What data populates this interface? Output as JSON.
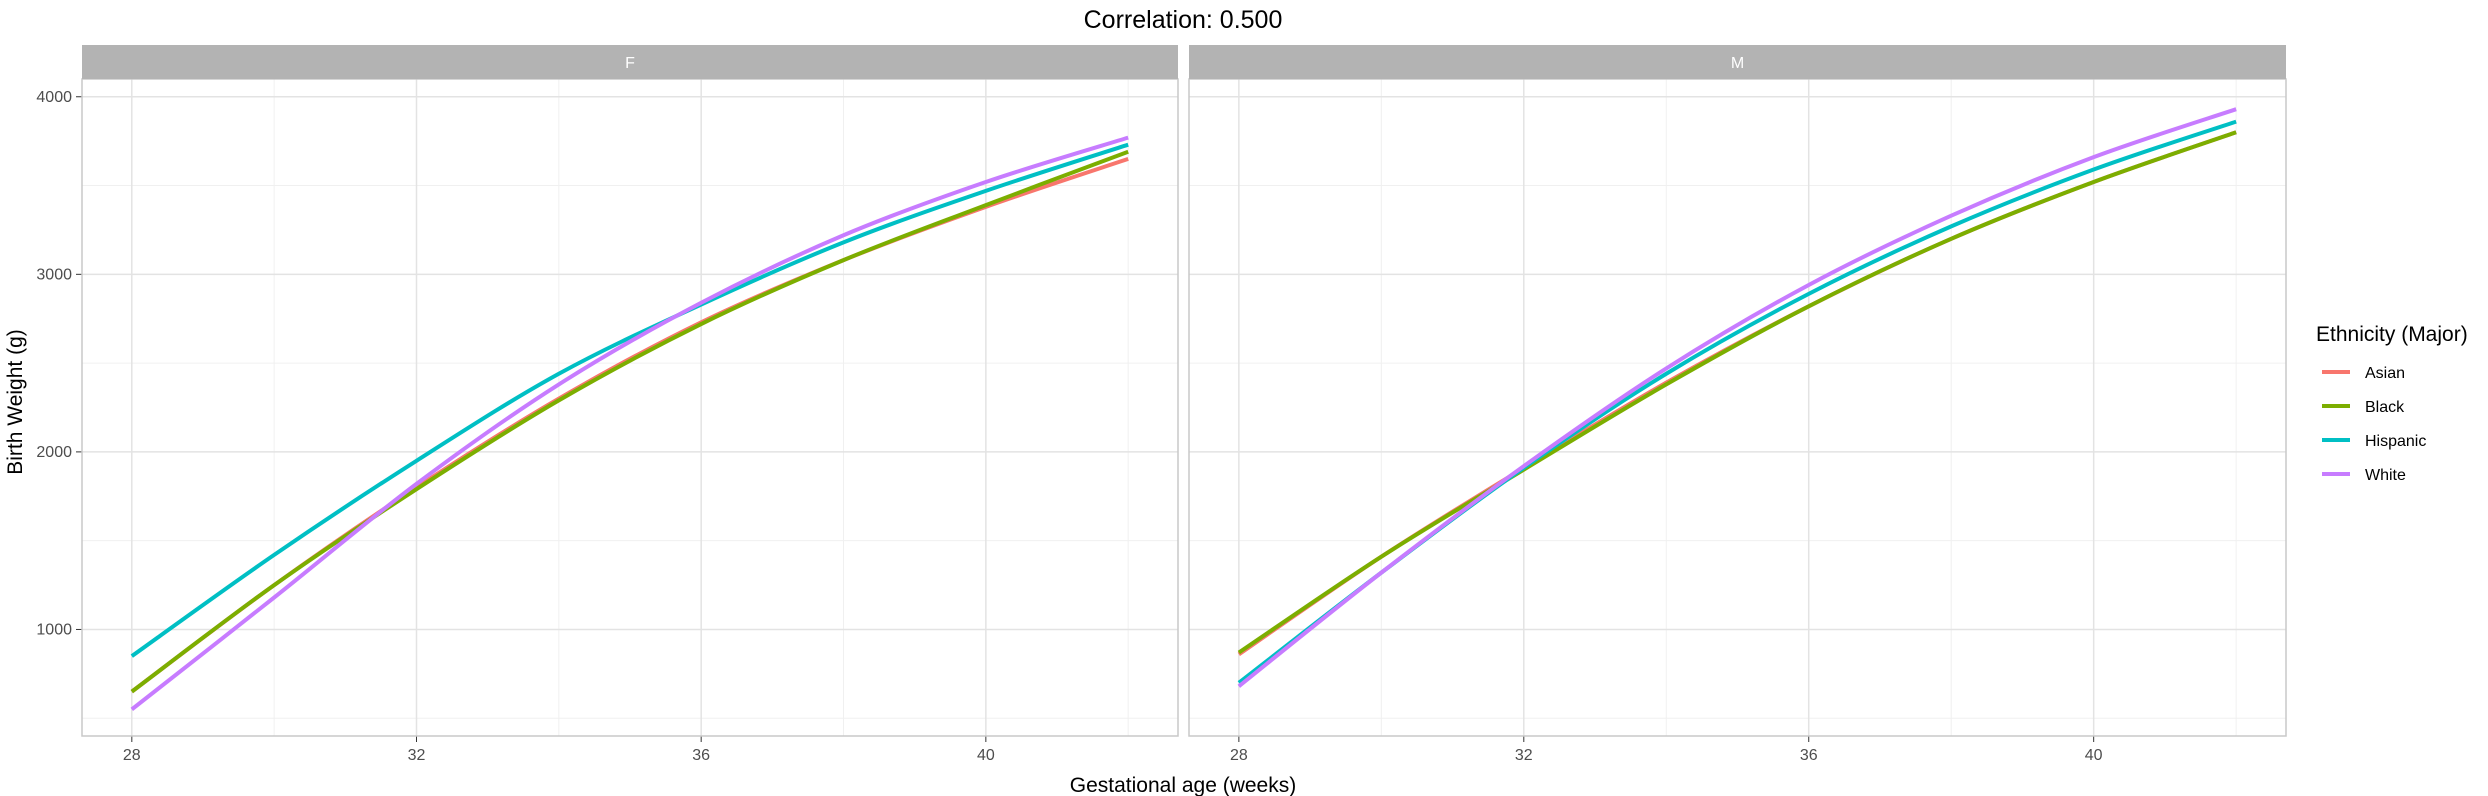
{
  "chart_data": {
    "type": "line",
    "title": "Correlation: 0.500",
    "xlabel": "Gestational age (weeks)",
    "ylabel": "Birth Weight (g)",
    "xlim": [
      27.3,
      42.7
    ],
    "ylim": [
      400,
      4100
    ],
    "x_ticks": [
      28,
      32,
      36,
      40
    ],
    "y_ticks": [
      1000,
      2000,
      3000,
      4000
    ],
    "grid": true,
    "legend_title": "Ethnicity (Major)",
    "legend_position": "right",
    "colors": {
      "Asian": "#F8766D",
      "Black": "#7CAE00",
      "Hispanic": "#00BFC4",
      "White": "#C77CFF"
    },
    "panels": [
      {
        "label": "F",
        "x": [
          28,
          30,
          32,
          34,
          36,
          38,
          40,
          42
        ],
        "series": [
          {
            "name": "Asian",
            "values": [
              650,
              1250,
              1800,
              2300,
              2730,
              3080,
              3380,
              3650
            ]
          },
          {
            "name": "Black",
            "values": [
              650,
              1250,
              1790,
              2290,
              2720,
              3080,
              3390,
              3690
            ]
          },
          {
            "name": "Hispanic",
            "values": [
              850,
              1420,
              1950,
              2440,
              2830,
              3180,
              3470,
              3730
            ]
          },
          {
            "name": "White",
            "values": [
              550,
              1180,
              1820,
              2380,
              2840,
              3220,
              3520,
              3770
            ]
          }
        ]
      },
      {
        "label": "M",
        "x": [
          28,
          30,
          32,
          34,
          36,
          38,
          40,
          42
        ],
        "series": [
          {
            "name": "Asian",
            "values": [
              860,
              1410,
              1910,
              2390,
              2820,
              3200,
              3520,
              3800
            ]
          },
          {
            "name": "Black",
            "values": [
              870,
              1410,
              1900,
              2380,
              2820,
              3200,
              3520,
              3800
            ]
          },
          {
            "name": "Hispanic",
            "values": [
              700,
              1320,
              1910,
              2440,
              2890,
              3270,
              3590,
              3860
            ]
          },
          {
            "name": "White",
            "values": [
              680,
              1320,
              1920,
              2470,
              2940,
              3330,
              3660,
              3930
            ]
          }
        ]
      }
    ]
  }
}
